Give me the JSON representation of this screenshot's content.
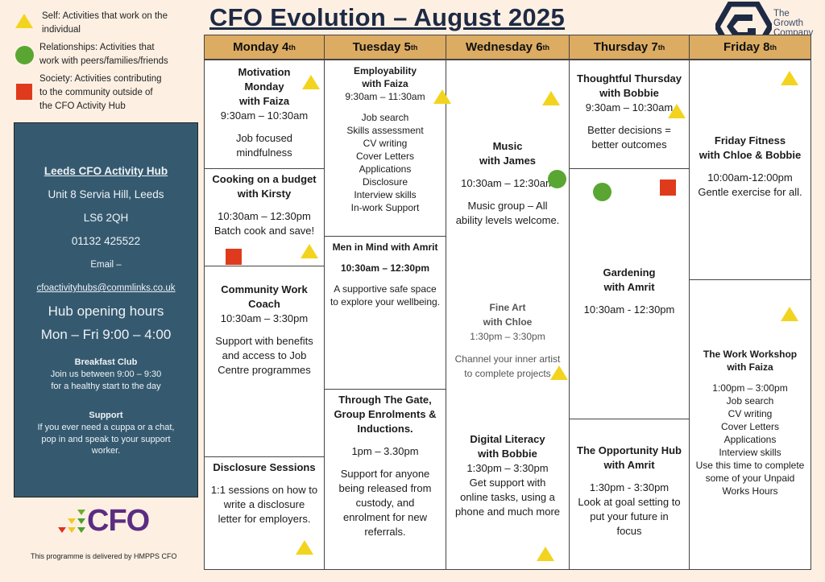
{
  "title": "CFO Evolution – August 2025",
  "legend": [
    {
      "shape": "triangle",
      "color": "#f2d41f",
      "text": [
        "Self: Activities that work on the",
        "individual"
      ]
    },
    {
      "shape": "circle",
      "color": "#5aa632",
      "text": [
        "Relationships: Activities that",
        "work with peers/families/friends"
      ]
    },
    {
      "shape": "square",
      "color": "#e03a1c",
      "text": [
        "Society: Activities contributing",
        "to the community outside of",
        "the CFO Activity Hub"
      ]
    }
  ],
  "growth_logo": {
    "lines": [
      "The",
      "Growth",
      "Company"
    ]
  },
  "days": [
    {
      "name": "Monday 4",
      "suffix": "th"
    },
    {
      "name": "Tuesday 5",
      "suffix": "th"
    },
    {
      "name": "Wednesday 6",
      "suffix": "th"
    },
    {
      "name": "Thursday 7",
      "suffix": "th"
    },
    {
      "name": "Friday 8",
      "suffix": "th"
    }
  ],
  "cells": {
    "mon1": [
      [
        "b",
        "Motivation"
      ],
      [
        "b",
        "Monday"
      ],
      [
        "b",
        "with Faiza"
      ],
      [
        "",
        "9:30am – 10:30am"
      ],
      [
        "gap",
        ""
      ],
      [
        "",
        "Job focused"
      ],
      [
        "",
        "mindfulness"
      ]
    ],
    "mon2": [
      [
        "b",
        "Cooking on a budget"
      ],
      [
        "b",
        "with Kirsty"
      ],
      [
        "gap",
        ""
      ],
      [
        "",
        "10:30am – 12:30pm"
      ],
      [
        "",
        "Batch cook and save!"
      ]
    ],
    "mon3": [
      [
        "b",
        "Community Work"
      ],
      [
        "b",
        "Coach"
      ],
      [
        "",
        "10:30am – 3:30pm"
      ],
      [
        "gap",
        ""
      ],
      [
        "",
        "Support with benefits"
      ],
      [
        "",
        "and access to Job"
      ],
      [
        "",
        "Centre programmes"
      ]
    ],
    "mon4": [
      [
        "b",
        "Disclosure Sessions"
      ],
      [
        "gap",
        ""
      ],
      [
        "",
        "1:1 sessions on how to"
      ],
      [
        "",
        "write a disclosure"
      ],
      [
        "",
        "letter for employers."
      ]
    ],
    "tue1": [
      [
        "b",
        "Employability"
      ],
      [
        "b",
        "with Faiza"
      ],
      [
        "",
        "9:30am – 11:30am"
      ],
      [
        "gap",
        ""
      ],
      [
        "",
        "Job search"
      ],
      [
        "",
        "Skills assessment"
      ],
      [
        "",
        "CV writing"
      ],
      [
        "",
        "Cover Letters"
      ],
      [
        "",
        "Applications"
      ],
      [
        "",
        "Disclosure"
      ],
      [
        "",
        "Interview skills"
      ],
      [
        "",
        "In-work Support"
      ]
    ],
    "tue2": [
      [
        "b",
        "Men in Mind with Amrit"
      ],
      [
        "gap",
        ""
      ],
      [
        "b",
        "10:30am – 12:30pm"
      ],
      [
        "gap",
        ""
      ],
      [
        "",
        "A supportive safe space"
      ],
      [
        "",
        "to explore your wellbeing."
      ]
    ],
    "tue3": [
      [
        "b",
        "Through The Gate,"
      ],
      [
        "b",
        "Group Enrolments &"
      ],
      [
        "b",
        "Inductions."
      ],
      [
        "gap",
        ""
      ],
      [
        "",
        "1pm – 3.30pm"
      ],
      [
        "gap",
        ""
      ],
      [
        "",
        "Support for anyone"
      ],
      [
        "",
        "being released from"
      ],
      [
        "",
        "custody, and"
      ],
      [
        "",
        "enrolment for new"
      ],
      [
        "",
        "referrals."
      ]
    ],
    "wed_music": [
      [
        "b",
        "Music"
      ],
      [
        "b",
        "with James"
      ],
      [
        "gap",
        ""
      ],
      [
        "",
        "10:30am – 12:30am"
      ],
      [
        "gap",
        ""
      ],
      [
        "",
        "Music group – All"
      ],
      [
        "",
        "ability levels welcome."
      ]
    ],
    "wed_art": [
      [
        "b grey",
        "Fine Art"
      ],
      [
        "b grey",
        "with Chloe"
      ],
      [
        "grey",
        "1:30pm – 3:30pm"
      ],
      [
        "gap",
        ""
      ],
      [
        "grey",
        "Channel your inner artist"
      ],
      [
        "grey",
        "to complete projects"
      ]
    ],
    "wed_digital": [
      [
        "b",
        "Digital Literacy"
      ],
      [
        "b",
        "with Bobbie"
      ],
      [
        "",
        "1:30pm – 3:30pm"
      ],
      [
        "",
        "Get support with"
      ],
      [
        "",
        "online tasks, using a"
      ],
      [
        "",
        "phone and much more"
      ]
    ],
    "thu1": [
      [
        "b",
        "Thoughtful Thursday"
      ],
      [
        "b",
        "with Bobbie"
      ],
      [
        "",
        "9:30am – 10:30am"
      ],
      [
        "gap",
        ""
      ],
      [
        "",
        "Better decisions ="
      ],
      [
        "",
        "better outcomes"
      ]
    ],
    "thu2": [
      [
        "b",
        "Gardening"
      ],
      [
        "b",
        "with Amrit"
      ],
      [
        "gap",
        ""
      ],
      [
        "",
        "10:30am - 12:30pm"
      ]
    ],
    "thu3": [
      [
        "b",
        "The Opportunity Hub"
      ],
      [
        "b",
        "with  Amrit"
      ],
      [
        "gap",
        ""
      ],
      [
        "",
        "1:30pm - 3:30pm"
      ],
      [
        "",
        "Look at goal setting to"
      ],
      [
        "",
        "put your future in"
      ],
      [
        "",
        "focus"
      ]
    ],
    "fri1": [
      [
        "b",
        "Friday Fitness"
      ],
      [
        "b",
        "with Chloe & Bobbie"
      ],
      [
        "gap",
        ""
      ],
      [
        "",
        "10:00am-12:00pm"
      ],
      [
        "",
        "Gentle exercise for all."
      ]
    ],
    "fri2": [
      [
        "b",
        "The Work Workshop"
      ],
      [
        "b",
        "with  Faiza"
      ],
      [
        "gap",
        ""
      ],
      [
        "",
        "1:00pm – 3:00pm"
      ],
      [
        "",
        "Job search"
      ],
      [
        "",
        "CV writing"
      ],
      [
        "",
        "Cover Letters"
      ],
      [
        "",
        "Applications"
      ],
      [
        "",
        "Interview skills"
      ],
      [
        "",
        "Use this time to complete"
      ],
      [
        "",
        "some of your Unpaid"
      ],
      [
        "",
        "Works Hours"
      ]
    ]
  },
  "sidebar": {
    "hub_name": "Leeds CFO Activity Hub",
    "address": "Unit 8 Servia Hill, Leeds",
    "postcode": "LS6 2QH",
    "phone": "01132 425522",
    "email_label": "Email –",
    "email": "cfoactivityhubs@commlinks.co.uk",
    "hours_label": "Hub opening hours",
    "hours": "Mon – Fri 9:00 – 4:00",
    "breakfast_title": "Breakfast Club",
    "breakfast_lines": [
      "Join us between 9:00 – 9:30",
      "for a healthy start to the day"
    ],
    "support_title": "Support",
    "support_lines": [
      "If you ever need a cuppa or a chat,",
      "pop in and speak to your support",
      "worker."
    ]
  },
  "cfo_logo": "CFO",
  "footer": "This programme is delivered by HMPPS CFO"
}
